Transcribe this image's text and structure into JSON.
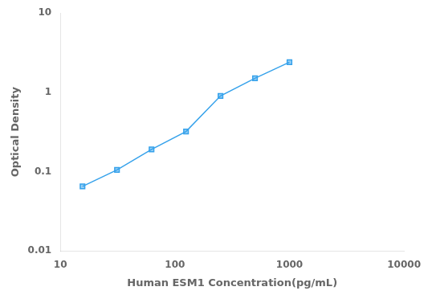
{
  "chart_data": {
    "type": "line",
    "xlabel": "Human ESM1 Concentration(pg/mL)",
    "ylabel": "Optical Density",
    "x": [
      15.6,
      31.2,
      62.5,
      125,
      250,
      500,
      1000
    ],
    "values": [
      0.065,
      0.105,
      0.19,
      0.32,
      0.9,
      1.5,
      2.4
    ],
    "marker": "square",
    "log": true,
    "xlim": [
      10,
      10000
    ],
    "ylim": [
      0.01,
      10
    ],
    "xticks": [
      10,
      100,
      1000,
      10000
    ],
    "yticks": [
      0.01,
      0.1,
      1,
      10
    ],
    "grid": false
  }
}
